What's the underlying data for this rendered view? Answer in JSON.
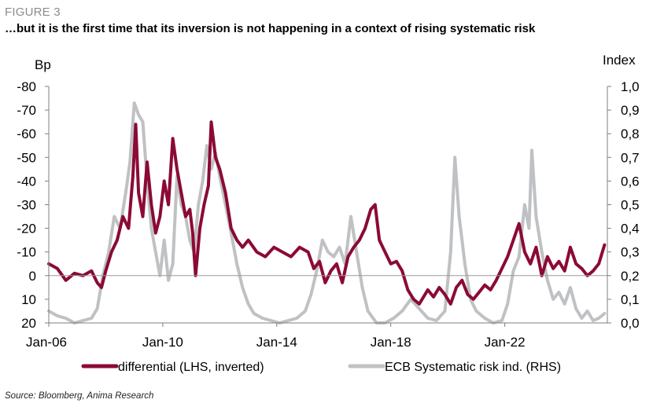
{
  "figure_label": "FIGURE 3",
  "title": "…but it is the first time that its inversion is not happening in a context of rising systematic risk",
  "source": "Source: Bloomberg, Anima Research",
  "colors": {
    "differential": "#8b0a35",
    "risk": "#bfc1c4",
    "axis": "#7f7f7f"
  },
  "chart_data": {
    "type": "line",
    "left_axis": {
      "label": "Bp",
      "inverted": true,
      "ylim": [
        20,
        -80
      ],
      "ticks": [
        "-80",
        "-70",
        "-60",
        "-50",
        "-40",
        "-30",
        "-20",
        "-10",
        "0",
        "10",
        "20"
      ]
    },
    "right_axis": {
      "label": "Index",
      "ylim": [
        0.0,
        1.0
      ],
      "ticks": [
        "1,0",
        "0,9",
        "0,8",
        "0,7",
        "0,6",
        "0,5",
        "0,4",
        "0,3",
        "0,2",
        "0,1",
        "0,0"
      ]
    },
    "x_ticks": [
      "Jan-06",
      "Jan-10",
      "Jan-14",
      "Jan-18",
      "Jan-22"
    ],
    "x_range": [
      2006.0,
      2025.6
    ],
    "legend": [
      "differential (LHS, inverted)",
      "ECB Systematic risk ind. (RHS)"
    ],
    "series": [
      {
        "name": "differential (LHS, inverted)",
        "axis": "left",
        "points": [
          [
            2006.0,
            -5
          ],
          [
            2006.3,
            -3
          ],
          [
            2006.6,
            2
          ],
          [
            2006.9,
            -1
          ],
          [
            2007.2,
            0
          ],
          [
            2007.5,
            -2
          ],
          [
            2007.7,
            3
          ],
          [
            2007.85,
            5
          ],
          [
            2008.0,
            -2
          ],
          [
            2008.2,
            -10
          ],
          [
            2008.4,
            -15
          ],
          [
            2008.6,
            -25
          ],
          [
            2008.8,
            -20
          ],
          [
            2008.95,
            -42
          ],
          [
            2009.05,
            -64
          ],
          [
            2009.15,
            -35
          ],
          [
            2009.3,
            -25
          ],
          [
            2009.45,
            -48
          ],
          [
            2009.6,
            -30
          ],
          [
            2009.75,
            -18
          ],
          [
            2009.9,
            -25
          ],
          [
            2010.05,
            -40
          ],
          [
            2010.2,
            -30
          ],
          [
            2010.35,
            -58
          ],
          [
            2010.5,
            -45
          ],
          [
            2010.65,
            -35
          ],
          [
            2010.8,
            -25
          ],
          [
            2010.95,
            -28
          ],
          [
            2011.05,
            -18
          ],
          [
            2011.15,
            0
          ],
          [
            2011.3,
            -20
          ],
          [
            2011.45,
            -30
          ],
          [
            2011.6,
            -38
          ],
          [
            2011.7,
            -65
          ],
          [
            2011.85,
            -50
          ],
          [
            2012.0,
            -45
          ],
          [
            2012.2,
            -35
          ],
          [
            2012.4,
            -20
          ],
          [
            2012.6,
            -15
          ],
          [
            2012.8,
            -12
          ],
          [
            2013.0,
            -15
          ],
          [
            2013.3,
            -10
          ],
          [
            2013.6,
            -8
          ],
          [
            2013.9,
            -12
          ],
          [
            2014.2,
            -10
          ],
          [
            2014.5,
            -8
          ],
          [
            2014.8,
            -12
          ],
          [
            2015.1,
            -10
          ],
          [
            2015.3,
            -3
          ],
          [
            2015.5,
            -6
          ],
          [
            2015.7,
            3
          ],
          [
            2015.9,
            -2
          ],
          [
            2016.1,
            -5
          ],
          [
            2016.3,
            3
          ],
          [
            2016.5,
            -8
          ],
          [
            2016.7,
            -12
          ],
          [
            2016.9,
            -15
          ],
          [
            2017.1,
            -20
          ],
          [
            2017.3,
            -28
          ],
          [
            2017.45,
            -30
          ],
          [
            2017.6,
            -15
          ],
          [
            2017.8,
            -10
          ],
          [
            2018.0,
            -5
          ],
          [
            2018.2,
            -6
          ],
          [
            2018.4,
            -2
          ],
          [
            2018.6,
            6
          ],
          [
            2018.8,
            10
          ],
          [
            2019.0,
            12
          ],
          [
            2019.3,
            6
          ],
          [
            2019.5,
            9
          ],
          [
            2019.7,
            5
          ],
          [
            2019.9,
            8
          ],
          [
            2020.1,
            12
          ],
          [
            2020.3,
            5
          ],
          [
            2020.5,
            2
          ],
          [
            2020.7,
            8
          ],
          [
            2020.9,
            10
          ],
          [
            2021.1,
            7
          ],
          [
            2021.3,
            4
          ],
          [
            2021.5,
            6
          ],
          [
            2021.7,
            2
          ],
          [
            2021.9,
            -3
          ],
          [
            2022.1,
            -8
          ],
          [
            2022.3,
            -15
          ],
          [
            2022.5,
            -22
          ],
          [
            2022.7,
            -10
          ],
          [
            2022.9,
            -5
          ],
          [
            2023.1,
            -12
          ],
          [
            2023.3,
            0
          ],
          [
            2023.5,
            -8
          ],
          [
            2023.7,
            -3
          ],
          [
            2023.9,
            -6
          ],
          [
            2024.1,
            -2
          ],
          [
            2024.3,
            -12
          ],
          [
            2024.5,
            -5
          ],
          [
            2024.7,
            -3
          ],
          [
            2024.9,
            0
          ],
          [
            2025.1,
            -2
          ],
          [
            2025.3,
            -5
          ],
          [
            2025.5,
            -13
          ]
        ]
      },
      {
        "name": "ECB Systematic risk ind. (RHS)",
        "axis": "right",
        "points": [
          [
            2006.0,
            0.05
          ],
          [
            2006.3,
            0.03
          ],
          [
            2006.6,
            0.02
          ],
          [
            2006.9,
            0.0
          ],
          [
            2007.2,
            0.01
          ],
          [
            2007.5,
            0.02
          ],
          [
            2007.7,
            0.06
          ],
          [
            2007.9,
            0.2
          ],
          [
            2008.1,
            0.3
          ],
          [
            2008.3,
            0.45
          ],
          [
            2008.5,
            0.4
          ],
          [
            2008.7,
            0.55
          ],
          [
            2008.85,
            0.68
          ],
          [
            2009.0,
            0.93
          ],
          [
            2009.15,
            0.88
          ],
          [
            2009.3,
            0.85
          ],
          [
            2009.45,
            0.6
          ],
          [
            2009.6,
            0.4
          ],
          [
            2009.75,
            0.3
          ],
          [
            2009.9,
            0.2
          ],
          [
            2010.05,
            0.35
          ],
          [
            2010.2,
            0.18
          ],
          [
            2010.35,
            0.25
          ],
          [
            2010.5,
            0.62
          ],
          [
            2010.65,
            0.5
          ],
          [
            2010.8,
            0.45
          ],
          [
            2010.95,
            0.35
          ],
          [
            2011.1,
            0.3
          ],
          [
            2011.25,
            0.5
          ],
          [
            2011.4,
            0.6
          ],
          [
            2011.55,
            0.75
          ],
          [
            2011.7,
            0.65
          ],
          [
            2011.85,
            0.72
          ],
          [
            2012.0,
            0.62
          ],
          [
            2012.2,
            0.5
          ],
          [
            2012.4,
            0.38
          ],
          [
            2012.6,
            0.25
          ],
          [
            2012.8,
            0.15
          ],
          [
            2013.0,
            0.08
          ],
          [
            2013.2,
            0.04
          ],
          [
            2013.5,
            0.02
          ],
          [
            2013.8,
            0.01
          ],
          [
            2014.1,
            0.0
          ],
          [
            2014.4,
            0.01
          ],
          [
            2014.7,
            0.02
          ],
          [
            2015.0,
            0.05
          ],
          [
            2015.2,
            0.12
          ],
          [
            2015.4,
            0.22
          ],
          [
            2015.6,
            0.35
          ],
          [
            2015.8,
            0.3
          ],
          [
            2016.0,
            0.28
          ],
          [
            2016.2,
            0.32
          ],
          [
            2016.4,
            0.25
          ],
          [
            2016.6,
            0.45
          ],
          [
            2016.8,
            0.3
          ],
          [
            2017.0,
            0.15
          ],
          [
            2017.2,
            0.05
          ],
          [
            2017.5,
            0.0
          ],
          [
            2017.8,
            0.0
          ],
          [
            2018.1,
            0.02
          ],
          [
            2018.4,
            0.05
          ],
          [
            2018.7,
            0.1
          ],
          [
            2019.0,
            0.06
          ],
          [
            2019.3,
            0.02
          ],
          [
            2019.6,
            0.01
          ],
          [
            2019.9,
            0.05
          ],
          [
            2020.1,
            0.3
          ],
          [
            2020.25,
            0.7
          ],
          [
            2020.4,
            0.45
          ],
          [
            2020.6,
            0.25
          ],
          [
            2020.8,
            0.1
          ],
          [
            2021.0,
            0.05
          ],
          [
            2021.3,
            0.02
          ],
          [
            2021.6,
            0.0
          ],
          [
            2021.9,
            0.01
          ],
          [
            2022.1,
            0.08
          ],
          [
            2022.3,
            0.22
          ],
          [
            2022.5,
            0.28
          ],
          [
            2022.7,
            0.5
          ],
          [
            2022.85,
            0.4
          ],
          [
            2022.95,
            0.73
          ],
          [
            2023.1,
            0.45
          ],
          [
            2023.3,
            0.3
          ],
          [
            2023.5,
            0.18
          ],
          [
            2023.7,
            0.1
          ],
          [
            2023.9,
            0.13
          ],
          [
            2024.1,
            0.08
          ],
          [
            2024.3,
            0.15
          ],
          [
            2024.5,
            0.06
          ],
          [
            2024.7,
            0.02
          ],
          [
            2024.9,
            0.05
          ],
          [
            2025.1,
            0.01
          ],
          [
            2025.3,
            0.02
          ],
          [
            2025.5,
            0.04
          ]
        ]
      }
    ]
  }
}
